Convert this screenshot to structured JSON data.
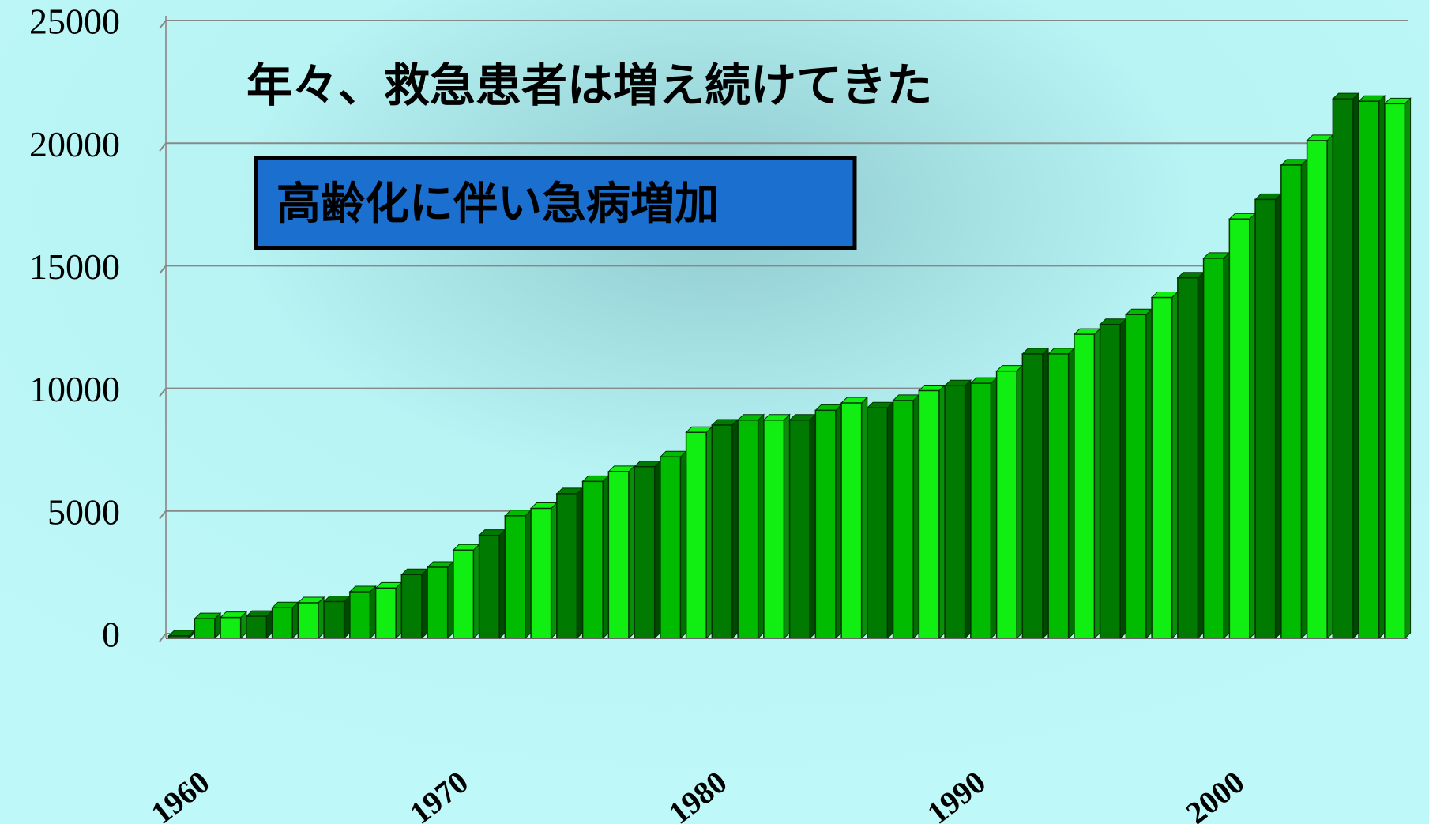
{
  "chart_data": {
    "type": "bar",
    "title": "年々、救急患者は増え続けてきた",
    "annotation": "高齢化に伴い急病増加",
    "categories": [
      "1960",
      null,
      null,
      null,
      null,
      null,
      null,
      null,
      null,
      null,
      "1970",
      null,
      null,
      null,
      null,
      null,
      null,
      null,
      null,
      null,
      "1980",
      null,
      null,
      null,
      null,
      null,
      null,
      null,
      null,
      null,
      "1990",
      null,
      null,
      null,
      null,
      null,
      null,
      null,
      null,
      null,
      "2000",
      null,
      null,
      null,
      null,
      null,
      null,
      null
    ],
    "values": [
      100,
      800,
      850,
      900,
      1250,
      1450,
      1500,
      1900,
      2050,
      2600,
      2900,
      3600,
      4200,
      5000,
      5300,
      5900,
      6400,
      6800,
      7000,
      7400,
      8400,
      8700,
      8900,
      8900,
      8900,
      9300,
      9600,
      9400,
      9700,
      10100,
      10300,
      10400,
      10900,
      11600,
      11600,
      12400,
      12800,
      13200,
      13900,
      14700,
      15500,
      17100,
      17900,
      19300,
      20300,
      22000,
      21900,
      21800
    ],
    "colors": [
      "#007a00",
      "#00bb00",
      "#11ee11"
    ],
    "ylim": [
      0,
      25000
    ],
    "yticks": [
      0,
      5000,
      10000,
      15000,
      20000,
      25000
    ],
    "grid": true
  }
}
